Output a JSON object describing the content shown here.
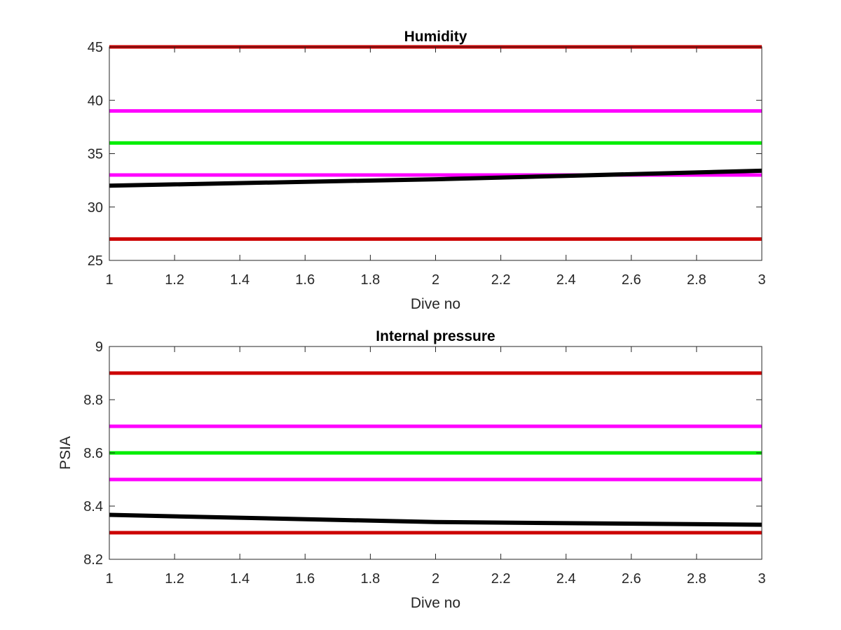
{
  "chart_data": [
    {
      "type": "line",
      "title": "Humidity",
      "xlabel": "Dive no",
      "ylabel": "",
      "xlim": [
        1,
        3
      ],
      "ylim": [
        25,
        45
      ],
      "x_ticks": [
        1,
        1.2,
        1.4,
        1.6,
        1.8,
        2,
        2.2,
        2.4,
        2.6,
        2.8,
        3
      ],
      "x_tick_labels": [
        "1",
        "1.2",
        "1.4",
        "1.6",
        "1.8",
        "2",
        "2.2",
        "2.4",
        "2.6",
        "2.8",
        "3"
      ],
      "y_ticks": [
        25,
        30,
        35,
        40,
        45
      ],
      "y_tick_labels": [
        "25",
        "30",
        "35",
        "40",
        "45"
      ],
      "grid": false,
      "series": [
        {
          "color": "#cc0000",
          "x": [
            1,
            3
          ],
          "y": [
            45,
            45
          ]
        },
        {
          "color": "#ff00ff",
          "x": [
            1,
            3
          ],
          "y": [
            39,
            39
          ]
        },
        {
          "color": "#00ee00",
          "x": [
            1,
            3
          ],
          "y": [
            36,
            36
          ]
        },
        {
          "color": "#ff00ff",
          "x": [
            1,
            3
          ],
          "y": [
            33,
            33
          ]
        },
        {
          "color": "#cc0000",
          "x": [
            1,
            3
          ],
          "y": [
            27,
            27
          ]
        },
        {
          "color": "#000000",
          "x": [
            1,
            2,
            3
          ],
          "y": [
            32,
            32.6,
            33.4
          ]
        }
      ]
    },
    {
      "type": "line",
      "title": "Internal pressure",
      "xlabel": "Dive no",
      "ylabel": "PSIA",
      "xlim": [
        1,
        3
      ],
      "ylim": [
        8.2,
        9
      ],
      "x_ticks": [
        1,
        1.2,
        1.4,
        1.6,
        1.8,
        2,
        2.2,
        2.4,
        2.6,
        2.8,
        3
      ],
      "x_tick_labels": [
        "1",
        "1.2",
        "1.4",
        "1.6",
        "1.8",
        "2",
        "2.2",
        "2.4",
        "2.6",
        "2.8",
        "3"
      ],
      "y_ticks": [
        8.2,
        8.4,
        8.6,
        8.8,
        9
      ],
      "y_tick_labels": [
        "8.2",
        "8.4",
        "8.6",
        "8.8",
        "9"
      ],
      "grid": false,
      "series": [
        {
          "color": "#cc0000",
          "x": [
            1,
            3
          ],
          "y": [
            8.9,
            8.9
          ]
        },
        {
          "color": "#ff00ff",
          "x": [
            1,
            3
          ],
          "y": [
            8.7,
            8.7
          ]
        },
        {
          "color": "#00ee00",
          "x": [
            1,
            3
          ],
          "y": [
            8.6,
            8.6
          ]
        },
        {
          "color": "#ff00ff",
          "x": [
            1,
            3
          ],
          "y": [
            8.5,
            8.5
          ]
        },
        {
          "color": "#cc0000",
          "x": [
            1,
            3
          ],
          "y": [
            8.3,
            8.3
          ]
        },
        {
          "color": "#000000",
          "x": [
            1,
            2,
            3
          ],
          "y": [
            8.367,
            8.34,
            8.33
          ]
        }
      ]
    }
  ]
}
